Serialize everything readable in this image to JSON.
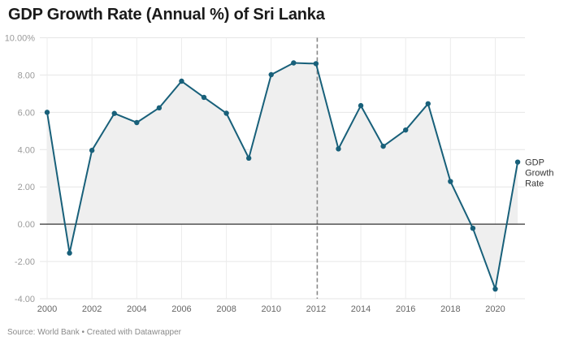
{
  "chart_data": {
    "type": "line",
    "title": "GDP Growth Rate (Annual %) of Sri Lanka",
    "source": "Source: World Bank • Created with Datawrapper",
    "xlabel": "",
    "ylabel": "",
    "xlim": [
      2000,
      2021
    ],
    "ylim": [
      -4,
      10
    ],
    "grid": true,
    "area_fill": true,
    "reference_line": {
      "x": 2012,
      "style": "dashed"
    },
    "y_ticks": [
      10,
      8,
      6,
      4,
      2,
      0,
      -2,
      -4
    ],
    "y_tick_labels": [
      "10.00%",
      "8.00",
      "6.00",
      "4.00",
      "2.00",
      "0.00",
      "-2.00",
      "-4.00"
    ],
    "x_ticks": [
      2000,
      2002,
      2004,
      2006,
      2008,
      2010,
      2012,
      2014,
      2016,
      2018,
      2020
    ],
    "x_tick_labels": [
      "2000",
      "2002",
      "2004",
      "2006",
      "2008",
      "2010",
      "2012",
      "2014",
      "2016",
      "2018",
      "2020"
    ],
    "series": [
      {
        "name": "GDP Growth Rate",
        "label_lines": [
          "GDP",
          "Growth",
          "Rate"
        ],
        "color": "#18607a",
        "fill_color": "#efefef",
        "x": [
          2000,
          2001,
          2002,
          2003,
          2004,
          2005,
          2006,
          2007,
          2008,
          2009,
          2010,
          2011,
          2012,
          2013,
          2014,
          2015,
          2016,
          2017,
          2018,
          2019,
          2020,
          2021
        ],
        "values": [
          6.0,
          -1.55,
          3.96,
          5.94,
          5.45,
          6.24,
          7.67,
          6.8,
          5.95,
          3.54,
          8.02,
          8.65,
          8.61,
          4.04,
          6.36,
          4.18,
          5.05,
          6.46,
          2.29,
          -0.22,
          -3.48,
          3.33
        ]
      }
    ]
  }
}
